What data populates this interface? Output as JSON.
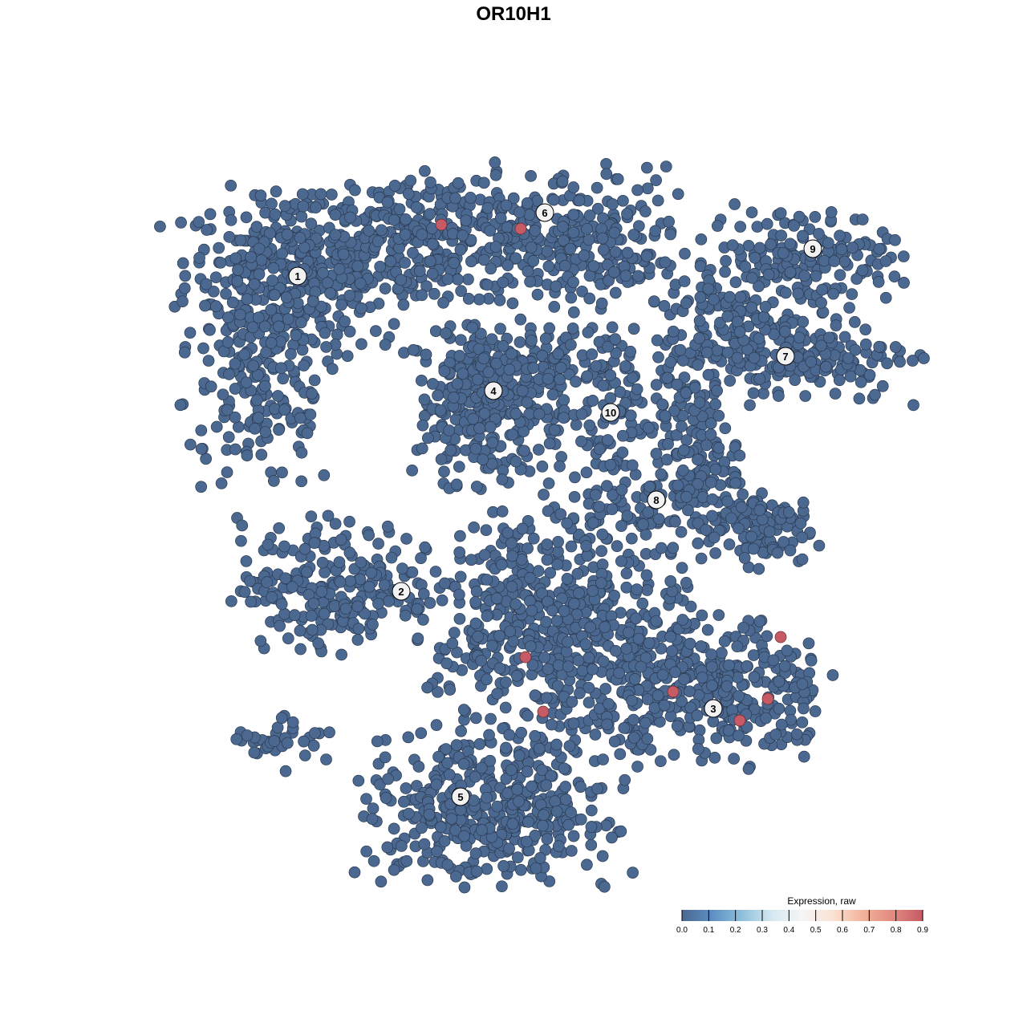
{
  "chart_data": {
    "type": "scatter",
    "title": "OR10H1",
    "xlabel": "",
    "ylabel": "",
    "grid": false,
    "axes_visible": false,
    "point_colors": {
      "low": "#4b6890",
      "high": "#c65a65",
      "stroke": "#2b3a50"
    },
    "clusters": [
      {
        "id": "1",
        "label_pos": [
          -26.9,
          29.6
        ],
        "blobs": [
          [
            -27,
            30,
            7,
            5,
            330
          ],
          [
            -31,
            14,
            5,
            6,
            140
          ],
          [
            -12,
            34,
            9,
            4,
            260
          ],
          [
            -33,
            24,
            3,
            6,
            60
          ]
        ]
      },
      {
        "id": "6",
        "label_pos": [
          3.9,
          37.5
        ],
        "blobs": [
          [
            4,
            35,
            9,
            4,
            230
          ],
          [
            13,
            31,
            4,
            3,
            60
          ]
        ]
      },
      {
        "id": "4",
        "label_pos": [
          -2.5,
          15.3
        ],
        "blobs": [
          [
            -3,
            14,
            4.5,
            5,
            340
          ]
        ]
      },
      {
        "id": "10",
        "label_pos": [
          12.1,
          12.6
        ],
        "blobs": [
          [
            12,
            12,
            3.5,
            4,
            90
          ],
          [
            7,
            19,
            4,
            2,
            60
          ]
        ]
      },
      {
        "id": "7",
        "label_pos": [
          33.9,
          19.6
        ],
        "blobs": [
          [
            34,
            20,
            8,
            3,
            220
          ],
          [
            26,
            25,
            3,
            3,
            60
          ]
        ]
      },
      {
        "id": "9",
        "label_pos": [
          37.3,
          33
        ],
        "blobs": [
          [
            36,
            32,
            6,
            3,
            160
          ]
        ]
      },
      {
        "id": "8",
        "label_pos": [
          17.8,
          1.7
        ],
        "blobs": [
          [
            23,
            7,
            2.5,
            5,
            130
          ],
          [
            30,
            -1.5,
            3.5,
            2.5,
            110
          ],
          [
            13,
            1,
            5,
            2,
            60
          ]
        ]
      },
      {
        "id": "2",
        "label_pos": [
          -14,
          -9.7
        ],
        "blobs": [
          [
            -22,
            -9,
            6,
            4,
            230
          ]
        ]
      },
      {
        "id": "3",
        "label_pos": [
          24.9,
          -24.3
        ],
        "blobs": [
          [
            25,
            -22,
            7,
            4.5,
            330
          ]
        ]
      },
      {
        "id": "5",
        "label_pos": [
          -6.6,
          -35.3
        ],
        "blobs": [
          [
            -3,
            -37,
            8,
            4.5,
            420
          ]
        ]
      },
      {
        "id": "",
        "label_pos": null,
        "blobs": [
          [
            6,
            -14,
            8,
            7,
            560
          ],
          [
            -29,
            -28,
            3,
            2,
            35
          ]
        ]
      }
    ],
    "expressing_points": [
      {
        "x": -9,
        "y": 36,
        "value": 0.9
      },
      {
        "x": 0.9,
        "y": 35.5,
        "value": 0.9
      },
      {
        "x": 1.5,
        "y": -17.9,
        "value": 0.9
      },
      {
        "x": 3.7,
        "y": -24.7,
        "value": 0.9
      },
      {
        "x": 19.9,
        "y": -22.2,
        "value": 0.9
      },
      {
        "x": 33.3,
        "y": -15.4,
        "value": 0.9
      },
      {
        "x": 31.7,
        "y": -23.1,
        "value": 0.9
      },
      {
        "x": 28.2,
        "y": -25.8,
        "value": 0.9
      }
    ],
    "legend": {
      "title": "Expression, raw",
      "placement": "bottom-right",
      "range": [
        0,
        0.9
      ],
      "ticks": [
        "0.0",
        "0.1",
        "0.2",
        "0.3",
        "0.4",
        "0.5",
        "0.6",
        "0.7",
        "0.8",
        "0.9"
      ],
      "colors": [
        "#4b6890",
        "#5d8fc4",
        "#8fc0dc",
        "#d6e8f1",
        "#f5f5f5",
        "#fbe2d5",
        "#f3b39b",
        "#e28a80",
        "#c65a65"
      ]
    }
  }
}
